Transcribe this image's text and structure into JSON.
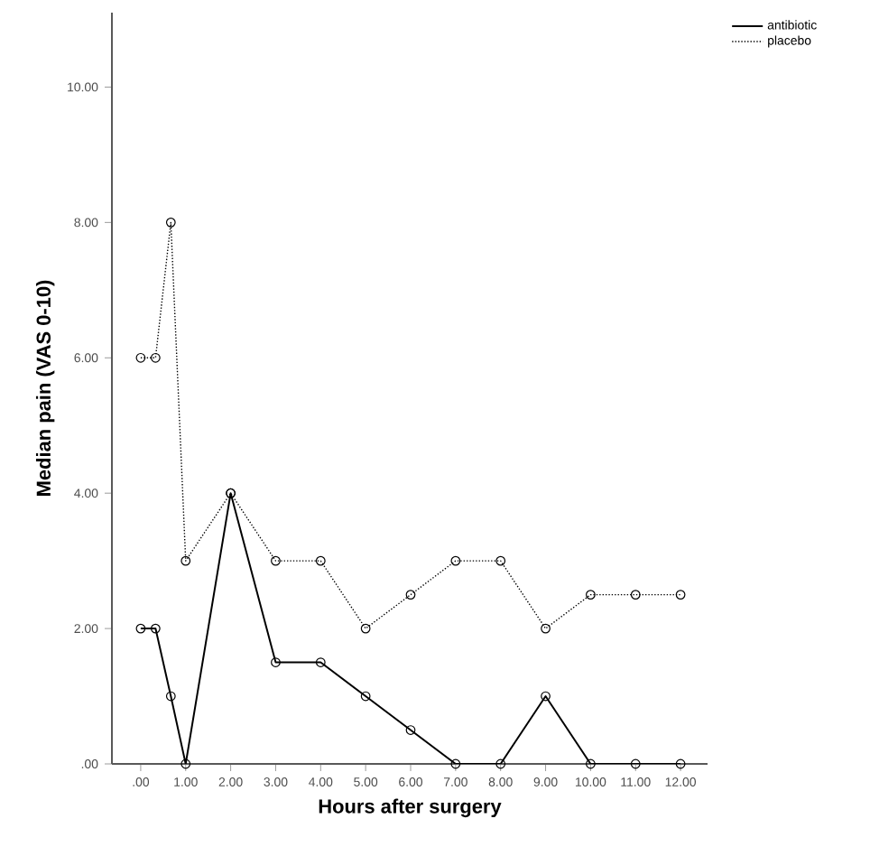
{
  "chart_data": {
    "type": "line",
    "xlabel": "Hours after surgery",
    "ylabel": "Median pain (VAS 0-10)",
    "series": [
      {
        "name": "antibiotic",
        "color": "#000000",
        "line_style": "solid",
        "x": [
          0,
          0.33,
          0.67,
          1,
          2,
          3,
          4,
          5,
          6,
          7,
          8,
          9,
          10,
          11,
          12
        ],
        "values": [
          2,
          2,
          1,
          0,
          4,
          1.5,
          1.5,
          1,
          0.5,
          0,
          0,
          1,
          0,
          0,
          0
        ]
      },
      {
        "name": "placebo",
        "color": "#000000",
        "line_style": "dotted",
        "x": [
          0,
          0.33,
          0.67,
          1,
          2,
          3,
          4,
          5,
          6,
          7,
          8,
          9,
          10,
          11,
          12
        ],
        "values": [
          6,
          6,
          8,
          3,
          4,
          3,
          3,
          2,
          2.5,
          3,
          3,
          2,
          2.5,
          2.5,
          2.5
        ]
      }
    ],
    "marker": "circle",
    "grid": false,
    "legend": "top right",
    "xlim": [
      -0.64,
      12.6
    ],
    "ylim": [
      0,
      11.1
    ],
    "xticks": [
      {
        "value": 0,
        "label": ".00"
      },
      {
        "value": 1,
        "label": "1.00"
      },
      {
        "value": 2,
        "label": "2.00"
      },
      {
        "value": 3,
        "label": "3.00"
      },
      {
        "value": 4,
        "label": "4.00"
      },
      {
        "value": 5,
        "label": "5.00"
      },
      {
        "value": 6,
        "label": "6.00"
      },
      {
        "value": 7,
        "label": "7.00"
      },
      {
        "value": 8,
        "label": "8.00"
      },
      {
        "value": 9,
        "label": "9.00"
      },
      {
        "value": 10,
        "label": "10.00"
      },
      {
        "value": 11,
        "label": "11.00"
      },
      {
        "value": 12,
        "label": "12.00"
      }
    ],
    "yticks": [
      {
        "value": 0,
        "label": ".00"
      },
      {
        "value": 2,
        "label": "2.00"
      },
      {
        "value": 4,
        "label": "4.00"
      },
      {
        "value": 6,
        "label": "6.00"
      },
      {
        "value": 8,
        "label": "8.00"
      },
      {
        "value": 10,
        "label": "10.00"
      }
    ]
  }
}
